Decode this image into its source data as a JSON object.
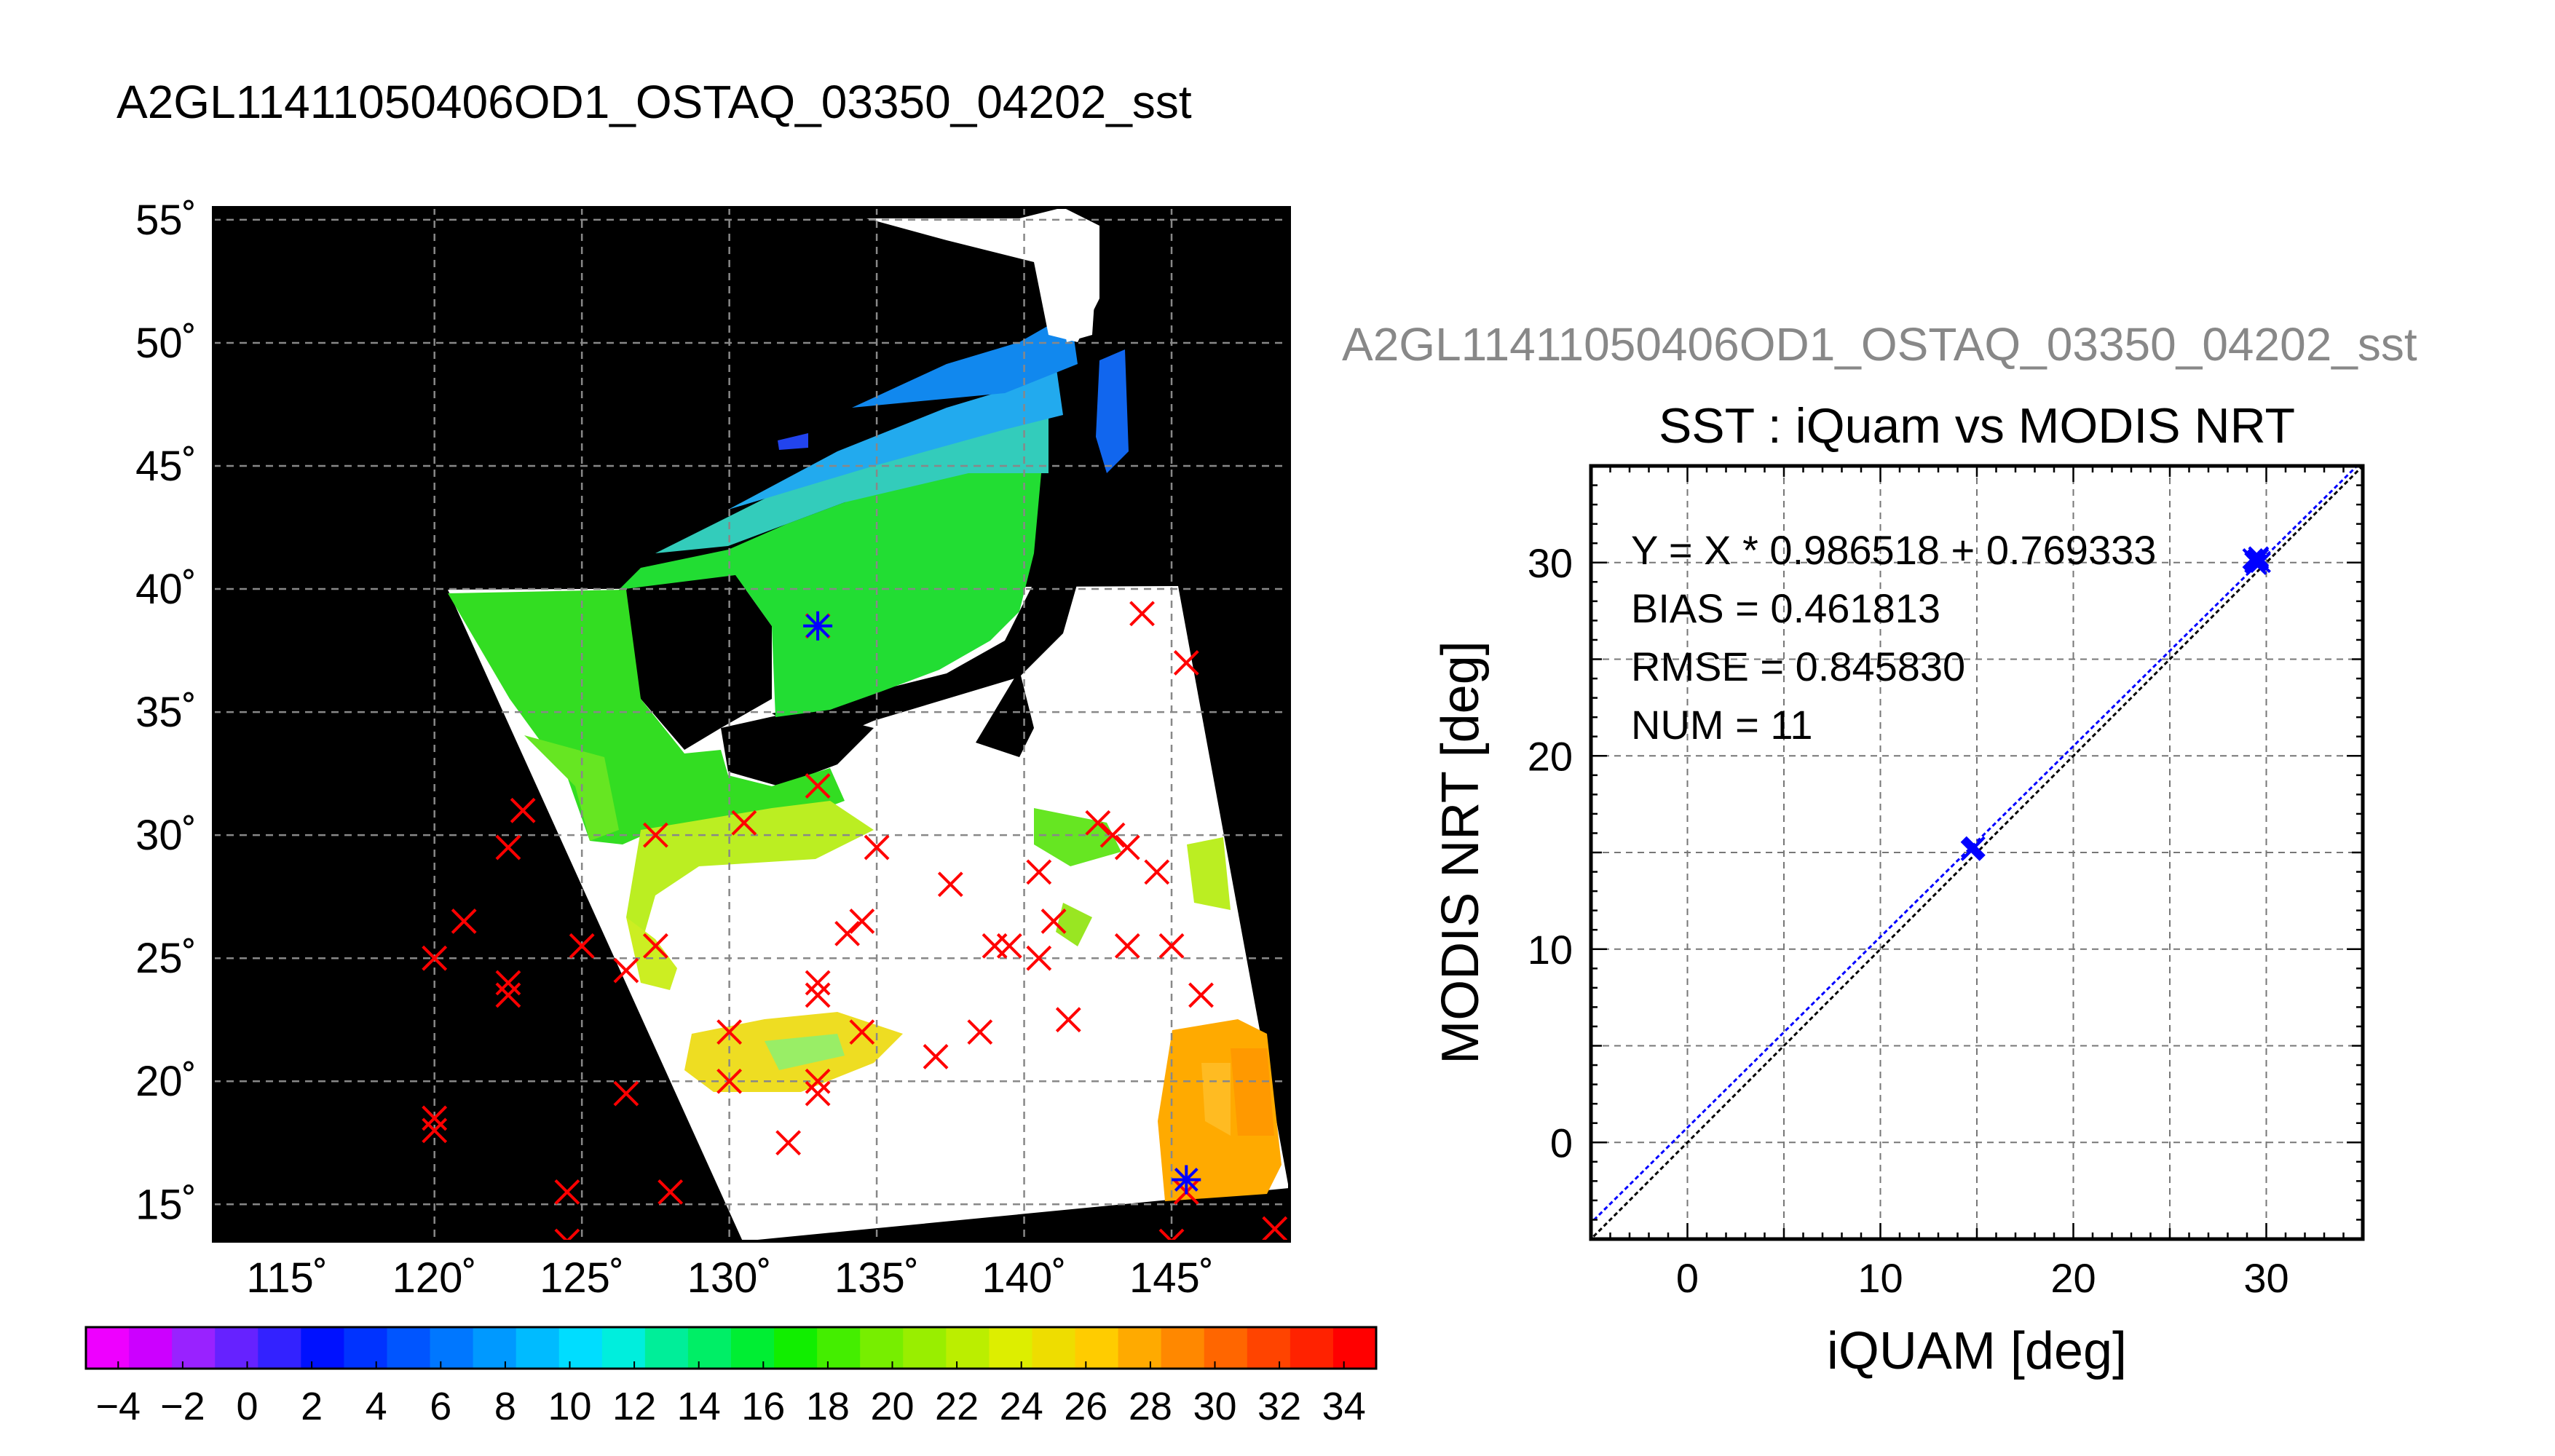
{
  "map_panel": {
    "title": "A2GL11411050406OD1_OSTAQ_03350_04202_sst",
    "lon_ticks": [
      "115˚",
      "120˚",
      "125˚",
      "130˚",
      "135˚",
      "140˚",
      "145˚"
    ],
    "lat_ticks": [
      "15˚",
      "20˚",
      "25˚",
      "30˚",
      "35˚",
      "40˚",
      "45˚",
      "50˚",
      "55˚"
    ],
    "colorbar_ticks": [
      "−4",
      "−2",
      "0",
      "2",
      "4",
      "6",
      "8",
      "10",
      "12",
      "14",
      "16",
      "18",
      "20",
      "22",
      "24",
      "26",
      "28",
      "30",
      "32",
      "34"
    ],
    "colors": {
      "land_mask": "#000000",
      "no_data": "#ffffff",
      "marker_red": "#ff0000",
      "marker_blue": "#0000ff"
    }
  },
  "scatter_panel": {
    "overflow_title": "A2GL11411050406OD1_OSTAQ_03350_04202_sst",
    "title": "SST : iQuam vs MODIS NRT",
    "stats": [
      "Y = X * 0.986518 + 0.769333",
      "BIAS = 0.461813",
      "RMSE = 0.845830",
      "NUM = 11"
    ]
  },
  "chart_data": [
    {
      "type": "heatmap",
      "title": "A2GL11411050406OD1_OSTAQ_03350_04202_sst",
      "xlabel": "",
      "ylabel": "",
      "xlim": [
        112.5,
        149
      ],
      "ylim": [
        13.5,
        55.5
      ],
      "xticks": [
        115,
        120,
        125,
        130,
        135,
        140,
        145
      ],
      "yticks": [
        15,
        20,
        25,
        30,
        35,
        40,
        45,
        50,
        55
      ],
      "grid": true,
      "colorbar": {
        "min": -5,
        "max": 35,
        "ticks": [
          -4,
          -2,
          0,
          2,
          4,
          6,
          8,
          10,
          12,
          14,
          16,
          18,
          20,
          22,
          24,
          26,
          28,
          30,
          32,
          34
        ]
      },
      "markers_red_x": [
        [
          133,
          38.5
        ],
        [
          144,
          39
        ],
        [
          145.5,
          37
        ],
        [
          133,
          32
        ],
        [
          127.5,
          30
        ],
        [
          130.5,
          30.5
        ],
        [
          135,
          29.5
        ],
        [
          140.5,
          28.5
        ],
        [
          142.5,
          30.5
        ],
        [
          143,
          30
        ],
        [
          143.5,
          29.5
        ],
        [
          144.5,
          28.5
        ],
        [
          137.5,
          28
        ],
        [
          122.5,
          29.5
        ],
        [
          123,
          31
        ],
        [
          121,
          26.5
        ],
        [
          120,
          25
        ],
        [
          125,
          25.5
        ],
        [
          127.5,
          25.5
        ],
        [
          126.5,
          24.5
        ],
        [
          122.5,
          24
        ],
        [
          122.5,
          23.5
        ],
        [
          134,
          26
        ],
        [
          134.5,
          26.5
        ],
        [
          139,
          25.5
        ],
        [
          139.5,
          25.5
        ],
        [
          140.5,
          25
        ],
        [
          141,
          26.5
        ],
        [
          143.5,
          25.5
        ],
        [
          145,
          25.5
        ],
        [
          146,
          23.5
        ],
        [
          133,
          24
        ],
        [
          133,
          23.5
        ],
        [
          130,
          22
        ],
        [
          134.5,
          22
        ],
        [
          138.5,
          22
        ],
        [
          137,
          21
        ],
        [
          141.5,
          22.5
        ],
        [
          130,
          20
        ],
        [
          133,
          20
        ],
        [
          133,
          19.5
        ],
        [
          126.5,
          19.5
        ],
        [
          132,
          17.5
        ],
        [
          120,
          18.5
        ],
        [
          120,
          18
        ],
        [
          124.5,
          15.5
        ],
        [
          128,
          15.5
        ],
        [
          124.5,
          13.5
        ],
        [
          145.5,
          15.5
        ],
        [
          145,
          13.5
        ],
        [
          148.5,
          14
        ]
      ],
      "markers_blue_star": [
        [
          133,
          38.5
        ],
        [
          145.5,
          16
        ]
      ]
    },
    {
      "type": "scatter",
      "title": "SST : iQuam vs MODIS NRT",
      "xlabel": "iQUAM [deg]",
      "ylabel": "MODIS NRT [deg]",
      "xlim": [
        -5,
        35
      ],
      "ylim": [
        -5,
        35
      ],
      "xticks": [
        0,
        10,
        20,
        30
      ],
      "yticks": [
        0,
        10,
        20,
        30
      ],
      "grid": true,
      "series": [
        {
          "points": [
            [
              14.8,
              15.2
            ],
            [
              14.9,
              15.3
            ],
            [
              14.7,
              15.1
            ],
            [
              29.4,
              30.1
            ],
            [
              29.6,
              30.2
            ],
            [
              29.5,
              29.9
            ],
            [
              29.7,
              30.0
            ],
            [
              29.3,
              30.2
            ],
            [
              29.6,
              30.3
            ],
            [
              29.4,
              30.0
            ],
            [
              29.5,
              30.1
            ]
          ]
        }
      ],
      "lines": [
        {
          "kind": "one_to_one",
          "slope": 1,
          "intercept": 0,
          "color": "#000000"
        },
        {
          "kind": "regression",
          "slope": 0.986518,
          "intercept": 0.769333,
          "color": "#0000ff"
        }
      ]
    }
  ]
}
